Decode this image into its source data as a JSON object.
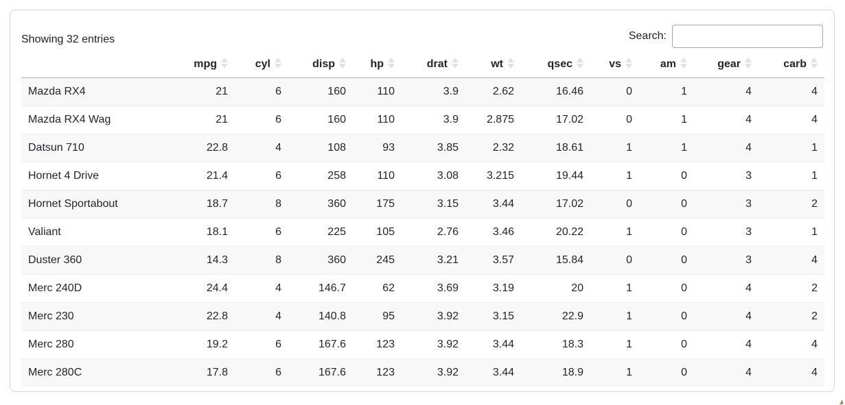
{
  "card": {
    "info_text": "Showing 32 entries",
    "search": {
      "label": "Search:",
      "value": "",
      "placeholder": ""
    }
  },
  "table": {
    "columns": [
      {
        "label": "",
        "sortable": false
      },
      {
        "label": "mpg",
        "sortable": true
      },
      {
        "label": "cyl",
        "sortable": true
      },
      {
        "label": "disp",
        "sortable": true
      },
      {
        "label": "hp",
        "sortable": true
      },
      {
        "label": "drat",
        "sortable": true
      },
      {
        "label": "wt",
        "sortable": true
      },
      {
        "label": "qsec",
        "sortable": true
      },
      {
        "label": "vs",
        "sortable": true
      },
      {
        "label": "am",
        "sortable": true
      },
      {
        "label": "gear",
        "sortable": true
      },
      {
        "label": "carb",
        "sortable": true
      }
    ],
    "rows": [
      {
        "name": "Mazda RX4",
        "values": [
          "21",
          "6",
          "160",
          "110",
          "3.9",
          "2.62",
          "16.46",
          "0",
          "1",
          "4",
          "4"
        ]
      },
      {
        "name": "Mazda RX4 Wag",
        "values": [
          "21",
          "6",
          "160",
          "110",
          "3.9",
          "2.875",
          "17.02",
          "0",
          "1",
          "4",
          "4"
        ]
      },
      {
        "name": "Datsun 710",
        "values": [
          "22.8",
          "4",
          "108",
          "93",
          "3.85",
          "2.32",
          "18.61",
          "1",
          "1",
          "4",
          "1"
        ]
      },
      {
        "name": "Hornet 4 Drive",
        "values": [
          "21.4",
          "6",
          "258",
          "110",
          "3.08",
          "3.215",
          "19.44",
          "1",
          "0",
          "3",
          "1"
        ]
      },
      {
        "name": "Hornet Sportabout",
        "values": [
          "18.7",
          "8",
          "360",
          "175",
          "3.15",
          "3.44",
          "17.02",
          "0",
          "0",
          "3",
          "2"
        ]
      },
      {
        "name": "Valiant",
        "values": [
          "18.1",
          "6",
          "225",
          "105",
          "2.76",
          "3.46",
          "20.22",
          "1",
          "0",
          "3",
          "1"
        ]
      },
      {
        "name": "Duster 360",
        "values": [
          "14.3",
          "8",
          "360",
          "245",
          "3.21",
          "3.57",
          "15.84",
          "0",
          "0",
          "3",
          "4"
        ]
      },
      {
        "name": "Merc 240D",
        "values": [
          "24.4",
          "4",
          "146.7",
          "62",
          "3.69",
          "3.19",
          "20",
          "1",
          "0",
          "4",
          "2"
        ]
      },
      {
        "name": "Merc 230",
        "values": [
          "22.8",
          "4",
          "140.8",
          "95",
          "3.92",
          "3.15",
          "22.9",
          "1",
          "0",
          "4",
          "2"
        ]
      },
      {
        "name": "Merc 280",
        "values": [
          "19.2",
          "6",
          "167.6",
          "123",
          "3.92",
          "3.44",
          "18.3",
          "1",
          "0",
          "4",
          "4"
        ]
      },
      {
        "name": "Merc 280C",
        "values": [
          "17.8",
          "6",
          "167.6",
          "123",
          "3.92",
          "3.44",
          "18.9",
          "1",
          "0",
          "4",
          "4"
        ]
      }
    ]
  },
  "colors": {
    "text": "#212529",
    "card_border": "#d6d6d6",
    "header_border": "#b0b0b0",
    "row_divider": "#ececec",
    "stripe": "#f8f8f8",
    "sort_icon": "#e2e2e2",
    "input_border": "#a6a6a6"
  }
}
